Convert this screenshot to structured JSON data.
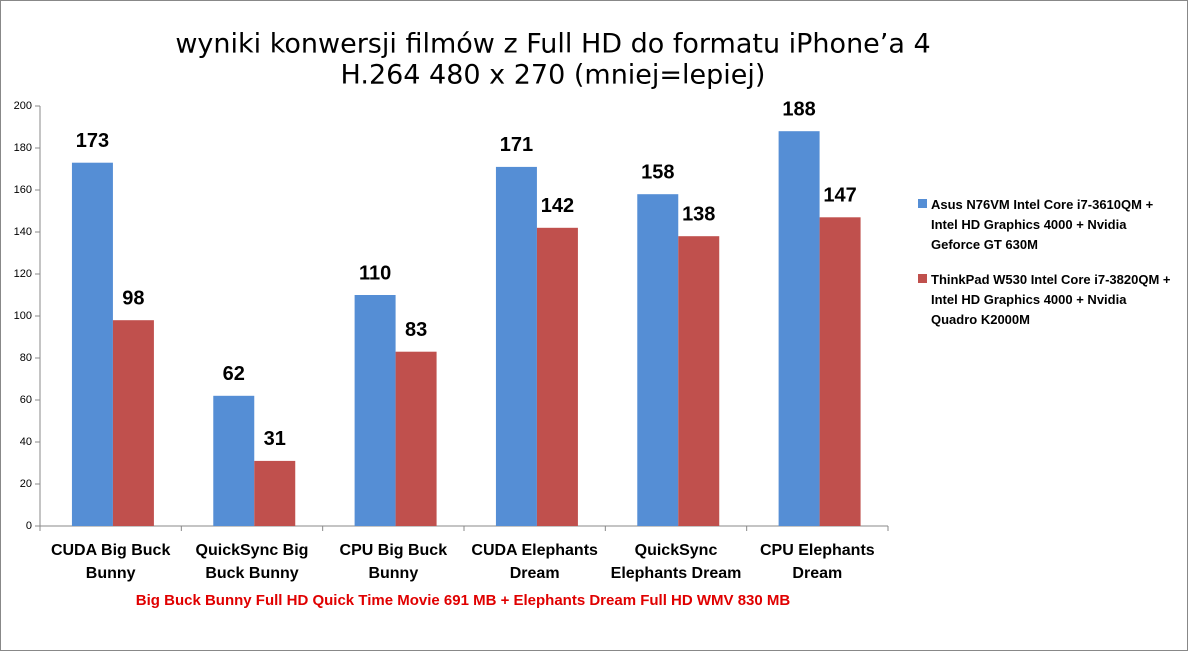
{
  "chart_data": {
    "type": "bar",
    "title": "wyniki konwersji filmów z Full HD do formatu iPhone’a 4",
    "subtitle": "H.264 480 x 270 (mniej=lepiej)",
    "x_label": "Big  Buck Bunny Full HD Quick Time Movie 691 MB + Elephants Dream Full HD WMV 830 MB",
    "categories": [
      "CUDA Big Buck Bunny",
      "QuickSync Big Buck Bunny",
      "CPU  Big Buck Bunny",
      "CUDA Elephants Dream",
      "QuickSync Elephants Dream",
      "CPU Elephants Dream"
    ],
    "series": [
      {
        "name": "Asus N76VM Intel Core i7-3610QM + Intel HD Graphics 4000 + Nvidia Geforce GT 630M",
        "color": "#558ed5",
        "values": [
          173,
          62,
          110,
          171,
          158,
          188
        ]
      },
      {
        "name": "ThinkPad W530 Intel Core i7-3820QM + Intel HD Graphics 4000 + Nvidia Quadro K2000M",
        "color": "#c0504d",
        "values": [
          98,
          31,
          83,
          142,
          138,
          147
        ]
      }
    ],
    "ylim": [
      0,
      200
    ],
    "yticks": [
      0,
      20,
      40,
      60,
      80,
      100,
      120,
      140,
      160,
      180,
      200
    ],
    "grid": false,
    "legend": "right"
  }
}
